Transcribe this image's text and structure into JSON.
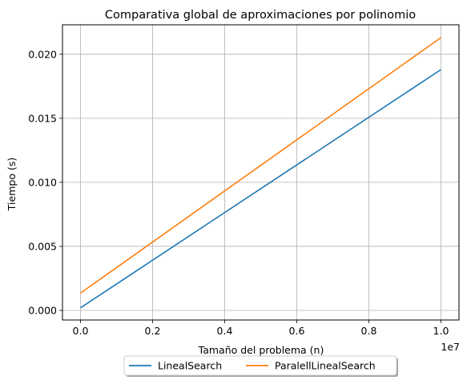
{
  "chart_data": {
    "type": "line",
    "title": "Comparativa global de aproximaciones por polinomio",
    "xlabel": "Tamaño del problema (n)",
    "ylabel": "Tiempo (s)",
    "x_offset_label": "1e7",
    "xlim": [
      -0.05,
      1.05
    ],
    "ylim": [
      -0.00075,
      0.0223
    ],
    "x_ticks": [
      0.0,
      0.2,
      0.4,
      0.6,
      0.8,
      1.0
    ],
    "x_tick_labels": [
      "0.0",
      "0.2",
      "0.4",
      "0.6",
      "0.8",
      "1.0"
    ],
    "y_ticks": [
      0.0,
      0.005,
      0.01,
      0.015,
      0.02
    ],
    "y_tick_labels": [
      "0.000",
      "0.005",
      "0.010",
      "0.015",
      "0.020"
    ],
    "grid": true,
    "legend_position": "below-center",
    "series": [
      {
        "name": "LinealSearch",
        "color": "#1f77b4",
        "x": [
          0.0,
          1.0
        ],
        "y": [
          0.0002,
          0.0188
        ]
      },
      {
        "name": "ParalellLinealSearch",
        "color": "#ff7f0e",
        "x": [
          0.0,
          1.0
        ],
        "y": [
          0.00135,
          0.0213
        ]
      }
    ]
  }
}
